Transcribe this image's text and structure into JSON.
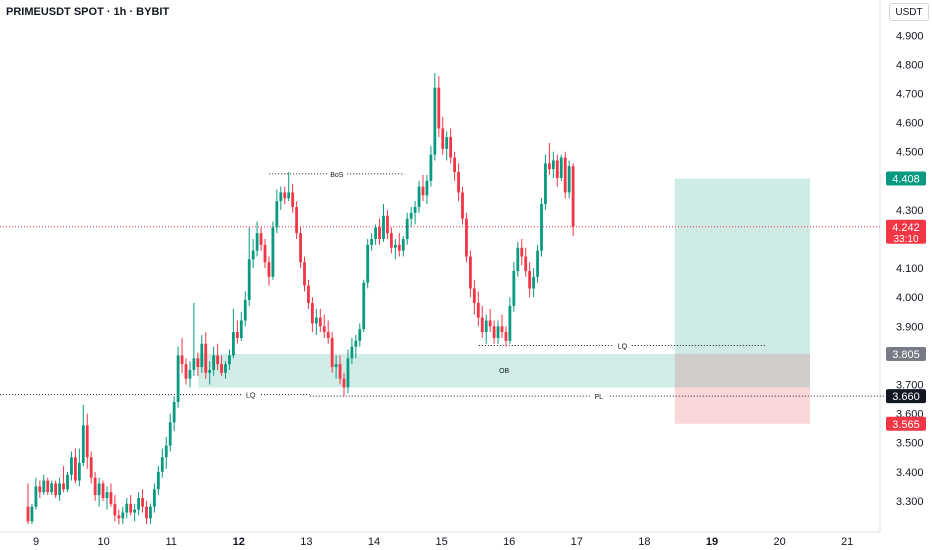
{
  "header": {
    "symbol": "PRIMEUSDT SPOT · 1h · BYBIT",
    "currency": "USDT"
  },
  "chart_data": {
    "type": "candlestick",
    "y_ticks": [
      "4.900",
      "4.800",
      "4.700",
      "4.600",
      "4.500",
      "4.300",
      "4.100",
      "4.000",
      "3.900",
      "3.700",
      "3.600",
      "3.500",
      "3.400",
      "3.300"
    ],
    "x_ticks": [
      {
        "label": "9",
        "bold": false
      },
      {
        "label": "10",
        "bold": false
      },
      {
        "label": "11",
        "bold": false
      },
      {
        "label": "12",
        "bold": true
      },
      {
        "label": "13",
        "bold": false
      },
      {
        "label": "14",
        "bold": false
      },
      {
        "label": "15",
        "bold": false
      },
      {
        "label": "16",
        "bold": false
      },
      {
        "label": "17",
        "bold": false
      },
      {
        "label": "18",
        "bold": false
      },
      {
        "label": "19",
        "bold": true
      },
      {
        "label": "20",
        "bold": false
      },
      {
        "label": "21",
        "bold": false
      }
    ],
    "ylim": [
      3.21,
      5.0
    ],
    "up_color": "#089981",
    "down_color": "#f23645",
    "price_line": {
      "value": 4.242,
      "label": "4.242",
      "countdown": "33:10",
      "color": "#f23645"
    },
    "price_tags": [
      {
        "value": 4.408,
        "label": "4.408",
        "color": "#089981"
      },
      {
        "value": 3.805,
        "label": "3.805",
        "color": "#787b86"
      },
      {
        "value": 3.66,
        "label": "3.660",
        "color": "#131722"
      },
      {
        "value": 3.565,
        "label": "3.565",
        "color": "#f23645"
      }
    ],
    "annotations": [
      {
        "text": "BoS",
        "y": 4.424,
        "x_start_day": 12.45,
        "x_end_day": 14.45
      },
      {
        "text": "LQ",
        "y": 3.834,
        "x_start_day": 15.55,
        "x_end_day": 19.8
      },
      {
        "text": "LQ",
        "y": 3.665,
        "x_start_day": 11.3,
        "x_end_day": 13.05
      },
      {
        "text": "OB",
        "y": 3.75,
        "x_start_day": null,
        "x_end_day": null
      },
      {
        "text": "PL",
        "y": 3.66,
        "x_start_day": 13.05,
        "x_end_day": 21.6
      }
    ],
    "order_block": {
      "y_low": 3.69,
      "y_high": 3.805,
      "x_start_day": 11.4,
      "x_end_day": 20.45
    },
    "position": {
      "entry": 3.805,
      "target": 4.408,
      "stop": 3.565,
      "x_start_day": 18.45,
      "x_end_day": 20.45
    },
    "candles": [
      [
        3.28,
        3.36,
        3.22,
        3.23
      ],
      [
        3.23,
        3.29,
        3.22,
        3.28
      ],
      [
        3.28,
        3.38,
        3.27,
        3.35
      ],
      [
        3.35,
        3.37,
        3.31,
        3.33
      ],
      [
        3.33,
        3.39,
        3.32,
        3.37
      ],
      [
        3.37,
        3.38,
        3.32,
        3.33
      ],
      [
        3.33,
        3.37,
        3.32,
        3.36
      ],
      [
        3.36,
        3.37,
        3.31,
        3.32
      ],
      [
        3.32,
        3.38,
        3.3,
        3.36
      ],
      [
        3.36,
        3.42,
        3.33,
        3.34
      ],
      [
        3.34,
        3.4,
        3.33,
        3.39
      ],
      [
        3.39,
        3.47,
        3.37,
        3.45
      ],
      [
        3.45,
        3.48,
        3.36,
        3.37
      ],
      [
        3.37,
        3.48,
        3.35,
        3.43
      ],
      [
        3.43,
        3.63,
        3.42,
        3.56
      ],
      [
        3.56,
        3.6,
        3.41,
        3.45
      ],
      [
        3.45,
        3.47,
        3.36,
        3.38
      ],
      [
        3.38,
        3.4,
        3.3,
        3.32
      ],
      [
        3.32,
        3.38,
        3.28,
        3.36
      ],
      [
        3.36,
        3.37,
        3.3,
        3.31
      ],
      [
        3.31,
        3.35,
        3.27,
        3.33
      ],
      [
        3.33,
        3.36,
        3.28,
        3.29
      ],
      [
        3.29,
        3.32,
        3.23,
        3.25
      ],
      [
        3.25,
        3.27,
        3.22,
        3.24
      ],
      [
        3.24,
        3.28,
        3.22,
        3.26
      ],
      [
        3.26,
        3.31,
        3.24,
        3.29
      ],
      [
        3.29,
        3.32,
        3.25,
        3.26
      ],
      [
        3.26,
        3.29,
        3.23,
        3.27
      ],
      [
        3.27,
        3.33,
        3.25,
        3.31
      ],
      [
        3.31,
        3.34,
        3.26,
        3.28
      ],
      [
        3.28,
        3.3,
        3.22,
        3.24
      ],
      [
        3.24,
        3.29,
        3.22,
        3.28
      ],
      [
        3.28,
        3.36,
        3.26,
        3.34
      ],
      [
        3.34,
        3.42,
        3.32,
        3.4
      ],
      [
        3.4,
        3.48,
        3.38,
        3.45
      ],
      [
        3.45,
        3.52,
        3.41,
        3.49
      ],
      [
        3.49,
        3.6,
        3.47,
        3.57
      ],
      [
        3.57,
        3.66,
        3.54,
        3.64
      ],
      [
        3.64,
        3.83,
        3.62,
        3.8
      ],
      [
        3.8,
        3.86,
        3.74,
        3.77
      ],
      [
        3.77,
        3.79,
        3.7,
        3.72
      ],
      [
        3.72,
        3.78,
        3.69,
        3.75
      ],
      [
        3.75,
        3.98,
        3.73,
        3.79
      ],
      [
        3.79,
        3.81,
        3.73,
        3.76
      ],
      [
        3.76,
        3.87,
        3.74,
        3.84
      ],
      [
        3.84,
        3.88,
        3.72,
        3.74
      ],
      [
        3.74,
        3.78,
        3.7,
        3.75
      ],
      [
        3.75,
        3.83,
        3.73,
        3.8
      ],
      [
        3.8,
        3.84,
        3.75,
        3.77
      ],
      [
        3.77,
        3.8,
        3.73,
        3.74
      ],
      [
        3.74,
        3.78,
        3.72,
        3.77
      ],
      [
        3.77,
        3.82,
        3.75,
        3.8
      ],
      [
        3.8,
        3.96,
        3.79,
        3.88
      ],
      [
        3.88,
        3.92,
        3.84,
        3.86
      ],
      [
        3.86,
        3.95,
        3.85,
        3.92
      ],
      [
        3.92,
        4.02,
        3.9,
        3.99
      ],
      [
        3.99,
        4.24,
        3.97,
        4.13
      ],
      [
        4.13,
        4.2,
        4.1,
        4.16
      ],
      [
        4.16,
        4.26,
        4.14,
        4.22
      ],
      [
        4.22,
        4.24,
        4.16,
        4.18
      ],
      [
        4.18,
        4.2,
        4.1,
        4.12
      ],
      [
        4.12,
        4.14,
        4.04,
        4.07
      ],
      [
        4.07,
        4.26,
        4.06,
        4.24
      ],
      [
        4.24,
        4.37,
        4.22,
        4.33
      ],
      [
        4.33,
        4.38,
        4.3,
        4.36
      ],
      [
        4.36,
        4.38,
        4.32,
        4.34
      ],
      [
        4.34,
        4.43,
        4.33,
        4.36
      ],
      [
        4.36,
        4.39,
        4.29,
        4.31
      ],
      [
        4.31,
        4.33,
        4.2,
        4.22
      ],
      [
        4.22,
        4.24,
        4.1,
        4.12
      ],
      [
        4.12,
        4.14,
        4.02,
        4.04
      ],
      [
        4.04,
        4.06,
        3.96,
        3.98
      ],
      [
        3.98,
        4.0,
        3.88,
        3.91
      ],
      [
        3.91,
        3.96,
        3.87,
        3.93
      ],
      [
        3.93,
        3.96,
        3.88,
        3.9
      ],
      [
        3.9,
        3.94,
        3.86,
        3.88
      ],
      [
        3.88,
        3.92,
        3.84,
        3.86
      ],
      [
        3.86,
        3.88,
        3.74,
        3.76
      ],
      [
        3.76,
        3.8,
        3.72,
        3.77
      ],
      [
        3.77,
        3.8,
        3.7,
        3.72
      ],
      [
        3.72,
        3.74,
        3.66,
        3.69
      ],
      [
        3.69,
        3.82,
        3.67,
        3.79
      ],
      [
        3.79,
        3.86,
        3.77,
        3.83
      ],
      [
        3.83,
        3.87,
        3.79,
        3.85
      ],
      [
        3.85,
        3.91,
        3.83,
        3.89
      ],
      [
        3.89,
        4.06,
        3.88,
        4.05
      ],
      [
        4.05,
        4.2,
        4.03,
        4.18
      ],
      [
        4.18,
        4.22,
        4.16,
        4.2
      ],
      [
        4.2,
        4.25,
        4.18,
        4.24
      ],
      [
        4.24,
        4.27,
        4.18,
        4.2
      ],
      [
        4.2,
        4.32,
        4.19,
        4.28
      ],
      [
        4.28,
        4.3,
        4.2,
        4.22
      ],
      [
        4.22,
        4.24,
        4.15,
        4.17
      ],
      [
        4.17,
        4.2,
        4.13,
        4.18
      ],
      [
        4.18,
        4.22,
        4.14,
        4.16
      ],
      [
        4.16,
        4.21,
        4.14,
        4.2
      ],
      [
        4.2,
        4.29,
        4.18,
        4.27
      ],
      [
        4.27,
        4.31,
        4.24,
        4.29
      ],
      [
        4.29,
        4.33,
        4.25,
        4.31
      ],
      [
        4.31,
        4.4,
        4.29,
        4.38
      ],
      [
        4.38,
        4.42,
        4.33,
        4.35
      ],
      [
        4.35,
        4.42,
        4.32,
        4.4
      ],
      [
        4.4,
        4.52,
        4.38,
        4.49
      ],
      [
        4.49,
        4.77,
        4.47,
        4.72
      ],
      [
        4.72,
        4.76,
        4.55,
        4.58
      ],
      [
        4.58,
        4.62,
        4.49,
        4.51
      ],
      [
        4.51,
        4.57,
        4.47,
        4.55
      ],
      [
        4.55,
        4.58,
        4.46,
        4.48
      ],
      [
        4.48,
        4.5,
        4.4,
        4.43
      ],
      [
        4.43,
        4.46,
        4.33,
        4.36
      ],
      [
        4.36,
        4.38,
        4.25,
        4.27
      ],
      [
        4.27,
        4.29,
        4.12,
        4.14
      ],
      [
        4.14,
        4.16,
        4.0,
        4.03
      ],
      [
        4.03,
        4.06,
        3.94,
        3.98
      ],
      [
        3.98,
        4.02,
        3.9,
        3.93
      ],
      [
        3.93,
        3.97,
        3.86,
        3.88
      ],
      [
        3.88,
        3.94,
        3.84,
        3.92
      ],
      [
        3.92,
        3.96,
        3.88,
        3.9
      ],
      [
        3.9,
        3.92,
        3.84,
        3.86
      ],
      [
        3.86,
        3.92,
        3.84,
        3.9
      ],
      [
        3.9,
        3.94,
        3.86,
        3.88
      ],
      [
        3.88,
        3.9,
        3.83,
        3.85
      ],
      [
        3.85,
        4.0,
        3.84,
        3.97
      ],
      [
        3.97,
        4.12,
        3.95,
        4.09
      ],
      [
        4.09,
        4.19,
        4.07,
        4.17
      ],
      [
        4.17,
        4.2,
        4.11,
        4.14
      ],
      [
        4.14,
        4.17,
        4.07,
        4.09
      ],
      [
        4.09,
        4.12,
        4.0,
        4.03
      ],
      [
        4.03,
        4.1,
        4.0,
        4.07
      ],
      [
        4.07,
        4.18,
        4.05,
        4.16
      ],
      [
        4.16,
        4.34,
        4.14,
        4.32
      ],
      [
        4.32,
        4.49,
        4.3,
        4.46
      ],
      [
        4.46,
        4.53,
        4.42,
        4.44
      ],
      [
        4.44,
        4.5,
        4.41,
        4.47
      ],
      [
        4.47,
        4.49,
        4.38,
        4.41
      ],
      [
        4.41,
        4.49,
        4.4,
        4.48
      ],
      [
        4.48,
        4.5,
        4.34,
        4.36
      ],
      [
        4.36,
        4.47,
        4.34,
        4.45
      ],
      [
        4.45,
        4.46,
        4.21,
        4.242
      ]
    ]
  }
}
